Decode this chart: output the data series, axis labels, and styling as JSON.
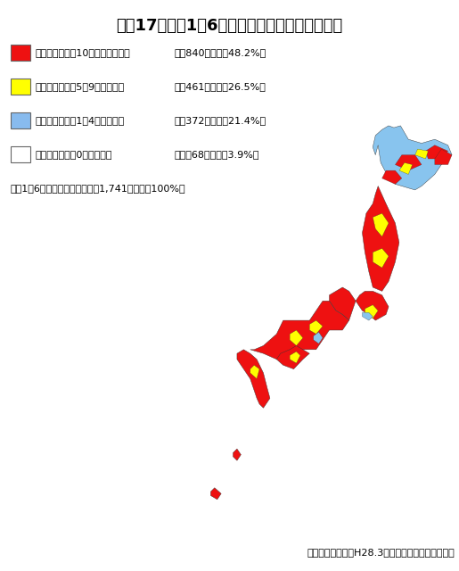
{
  "title": "平成17年～平1　6年　水害（河川）の発生状況",
  "title_fontsize": 13,
  "background_color": "#ffffff",
  "legend_items": [
    {
      "color": "#ee1111",
      "label1": "水害（河川）が10回以上の市町村",
      "label2": "：　840市町村（48.2%）"
    },
    {
      "color": "#ffff00",
      "label1": "水害（河川）が5～9回の市町村",
      "label2": "：　461市町村（26.5%）"
    },
    {
      "color": "#88bbee",
      "label1": "水害（河川）が1～4回の市町村",
      "label2": "：　372市町村（21.4%）"
    },
    {
      "color": "#ffffff",
      "label1": "水害（河川）が0回の市町村",
      "label2": "：　　68市町村（3.9%）"
    }
  ],
  "footnote": "（平1　6年末　全市町村数）：1,741市町村（100%）",
  "source": "資料：水害統計（H28.3）をもとに国土交通省作成"
}
